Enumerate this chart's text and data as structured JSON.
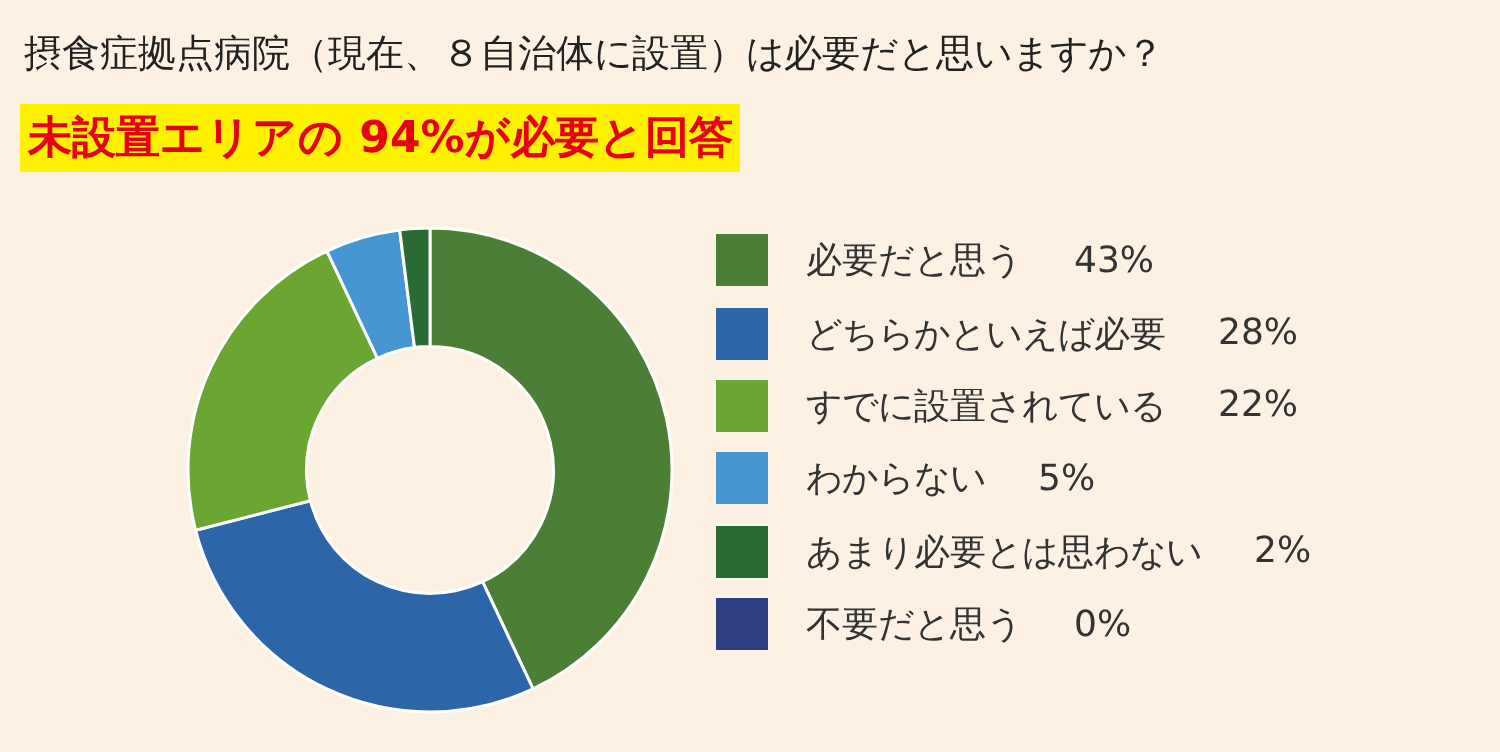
{
  "chart_data": {
    "type": "donut",
    "title": "摂食症拠点病院（現在、８自治体に設置）は必要だと思いますか？",
    "subtitle": "未設置エリアの 94%が必要と回答",
    "categories": [
      "必要だと思う",
      "どちらかといえば必要",
      "すでに設置されている",
      "わからない",
      "あまり必要とは思わない",
      "不要だと思う"
    ],
    "values": [
      43,
      28,
      22,
      5,
      2,
      0
    ],
    "value_labels": [
      "43%",
      "28%",
      "22%",
      "5%",
      "2%",
      "0%"
    ],
    "colors": [
      "#4a7f35",
      "#2d66a8",
      "#6aa631",
      "#4696d2",
      "#2a6a33",
      "#2e3f82"
    ],
    "legend": "right"
  }
}
